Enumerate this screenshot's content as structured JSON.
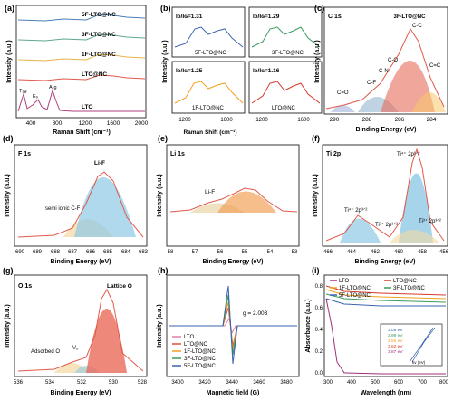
{
  "figure": {
    "panels": {
      "a": {
        "tag": "(a)",
        "xlabel": "Raman Shift (cm⁻¹)",
        "ylabel": "Intensity (a.u.)",
        "xticks": [
          "400",
          "800",
          "1200",
          "1600",
          "2000"
        ],
        "peak_labels": [
          "T₂g",
          "E₉",
          "A₁g"
        ],
        "series": [
          {
            "name": "5F-LTO@NC",
            "color": "#4a7fb8"
          },
          {
            "name": "3F-LTO@NC",
            "color": "#5fa88a"
          },
          {
            "name": "1F-LTO@NC",
            "color": "#e6b24a"
          },
          {
            "name": "LTO@NC",
            "color": "#e05a4a"
          },
          {
            "name": "LTO",
            "color": "#b0407c"
          }
        ]
      },
      "b": {
        "tag": "(b)",
        "ylabel": "Intensity (a.u.)",
        "xlabel": "Raman Shift (cm⁻¹)",
        "subplots": [
          {
            "ratio": "Iᴅ/Iɢ=1.31",
            "name": "5F-LTO@NC",
            "color": "#3a63b0",
            "ticks": [
              "1200",
              "1600"
            ]
          },
          {
            "ratio": "Iᴅ/Iɢ=1.29",
            "name": "3F-LTO@NC",
            "color": "#3b9a5f",
            "ticks": [
              "1200",
              "1600"
            ]
          },
          {
            "ratio": "Iᴅ/Iɢ=1.25",
            "name": "1F-LTO@NC",
            "color": "#f0a020",
            "ticks": [
              "1200",
              "1600"
            ]
          },
          {
            "ratio": "Iᴅ/Iɢ=1.16",
            "name": "LTO@NC",
            "color": "#d63a2a",
            "ticks": [
              "1200",
              "1600"
            ]
          }
        ]
      },
      "c": {
        "tag": "(c)",
        "title": "C 1s",
        "xlabel": "Binding Energy (eV)",
        "ylabel": "Intensity (a.u.)",
        "xticks": [
          "290",
          "288",
          "286",
          "284"
        ],
        "labels": [
          "3F-LTO@NC",
          "C-C",
          "C-O",
          "C-N",
          "C-F",
          "C=O",
          "C=C"
        ]
      },
      "d": {
        "tag": "(d)",
        "title": "F 1s",
        "xlabel": "Binding Energy (eV)",
        "ylabel": "Intensity (a.u.)",
        "xticks": [
          "690",
          "689",
          "688",
          "687",
          "686",
          "685",
          "684",
          "683"
        ],
        "labels": [
          "Li-F",
          "semi ionic C-F"
        ]
      },
      "e": {
        "tag": "(e)",
        "title": "Li 1s",
        "xlabel": "Binding Energy (eV)",
        "ylabel": "Intensity (a.u.)",
        "xticks": [
          "58",
          "57",
          "56",
          "55",
          "54",
          "53"
        ],
        "labels": [
          "Li-F"
        ]
      },
      "f": {
        "tag": "(f)",
        "title": "Ti 2p",
        "xlabel": "Binding Energy (eV)",
        "ylabel": "Intensity (a.u.)",
        "xticks": [
          "466",
          "464",
          "462",
          "460",
          "458",
          "456"
        ],
        "labels": [
          "Ti⁴⁺ 2p³ᐟ²",
          "Ti⁴⁺ 2p¹ᐟ²",
          "Ti³⁺ 2p¹ᐟ²",
          "Ti³⁺ 2p³ᐟ²"
        ]
      },
      "g": {
        "tag": "(g)",
        "title": "O 1s",
        "xlabel": "Binding Energy (eV)",
        "ylabel": "Intensity (a.u.)",
        "xticks": [
          "536",
          "534",
          "532",
          "530",
          "528"
        ],
        "labels": [
          "Lattice O",
          "Adsorbed O",
          "Vₒ"
        ]
      },
      "h": {
        "tag": "(h)",
        "xlabel": "Magnetic field (G)",
        "ylabel": "Intensity (a.u.)",
        "xticks": [
          "3400",
          "3420",
          "3440",
          "3460",
          "3480"
        ],
        "annotation": "g = 2.003",
        "series": [
          {
            "name": "LTO",
            "color": "#e37fae"
          },
          {
            "name": "LTO@NC",
            "color": "#e74c3c"
          },
          {
            "name": "1F-LTO@NC",
            "color": "#f0a020"
          },
          {
            "name": "3F-LTO@NC",
            "color": "#3b9a5f"
          },
          {
            "name": "5F-LTO@NC",
            "color": "#3a63b0"
          }
        ]
      },
      "i": {
        "tag": "(i)",
        "xlabel": "Wavelength (nm)",
        "ylabel": "Absorbance (a.u.)",
        "xticks": [
          "300",
          "400",
          "500",
          "600",
          "700",
          "800"
        ],
        "yticks": [
          "0.0",
          "0.2",
          "0.4",
          "0.6",
          "0.8"
        ],
        "legend": [
          {
            "name": "LTO",
            "color": "#a0307a"
          },
          {
            "name": "LTO@NC",
            "color": "#d63a2a"
          },
          {
            "name": "1F-LTO@NC",
            "color": "#f0a020"
          },
          {
            "name": "3F-LTO@NC",
            "color": "#3b9a5f"
          },
          {
            "name": "5F-LTO@NC",
            "color": "#3a63b0"
          }
        ],
        "inset_values": [
          "3.05 eV",
          "2.99 eV",
          "3.55 eV",
          "3.62 eV",
          "3.87 eV"
        ],
        "inset_colors": [
          "#3a63b0",
          "#3b9a5f",
          "#f0a020",
          "#d63a2a",
          "#a0307a"
        ],
        "inset_xlabel": "hv (eV)"
      }
    }
  }
}
